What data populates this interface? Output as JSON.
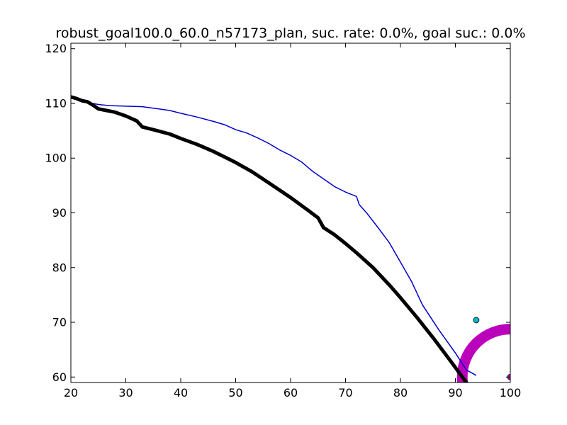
{
  "chart_data": {
    "type": "line",
    "title": "robust_goal100.0_60.0_n57173_plan, suc. rate: 0.0%, goal suc.: 0.0%",
    "xlabel": "",
    "ylabel": "",
    "xlim": [
      20,
      100
    ],
    "ylim": [
      59,
      121
    ],
    "grid": false,
    "xticks": [
      "20",
      "30",
      "40",
      "50",
      "60",
      "70",
      "80",
      "90",
      "100"
    ],
    "yticks": [
      "60",
      "70",
      "80",
      "90",
      "100",
      "110",
      "120"
    ],
    "series": [
      {
        "color": "#0000cc",
        "style": "thin",
        "points": [
          [
            24,
            110
          ],
          [
            25,
            109.8
          ],
          [
            27,
            109.6
          ],
          [
            30,
            109.5
          ],
          [
            33,
            109.4
          ],
          [
            36,
            109.0
          ],
          [
            38,
            108.7
          ],
          [
            40,
            108.2
          ],
          [
            43,
            107.5
          ],
          [
            46,
            106.7
          ],
          [
            48,
            106.1
          ],
          [
            50,
            105.2
          ],
          [
            52,
            104.6
          ],
          [
            54,
            103.7
          ],
          [
            56,
            102.7
          ],
          [
            58,
            101.5
          ],
          [
            60,
            100.5
          ],
          [
            62,
            99.3
          ],
          [
            64,
            97.6
          ],
          [
            66,
            96.2
          ],
          [
            68,
            94.8
          ],
          [
            70,
            93.8
          ],
          [
            72,
            93.0
          ],
          [
            72.5,
            91.5
          ],
          [
            74,
            89.8
          ],
          [
            76,
            87.2
          ],
          [
            78,
            84.5
          ],
          [
            80,
            81.0
          ],
          [
            82,
            77.5
          ],
          [
            84,
            73.2
          ],
          [
            87,
            68.6
          ],
          [
            90,
            64.4
          ],
          [
            92,
            61.3
          ],
          [
            93.8,
            60.3
          ]
        ]
      },
      {
        "color": "#000000",
        "style": "thick",
        "points": [
          [
            20,
            111.2
          ],
          [
            21,
            110.9
          ],
          [
            22,
            110.5
          ],
          [
            23,
            110.3
          ],
          [
            24,
            109.7
          ],
          [
            25,
            109.0
          ],
          [
            26,
            108.8
          ],
          [
            28,
            108.4
          ],
          [
            30,
            107.7
          ],
          [
            32,
            106.8
          ],
          [
            33,
            105.7
          ],
          [
            35,
            105.2
          ],
          [
            38,
            104.4
          ],
          [
            40,
            103.6
          ],
          [
            43,
            102.5
          ],
          [
            46,
            101.2
          ],
          [
            50,
            99.2
          ],
          [
            53,
            97.5
          ],
          [
            56,
            95.5
          ],
          [
            60,
            92.8
          ],
          [
            63,
            90.6
          ],
          [
            65,
            89.1
          ],
          [
            66,
            87.3
          ],
          [
            68,
            86.0
          ],
          [
            70,
            84.4
          ],
          [
            72,
            82.7
          ],
          [
            75,
            80.0
          ],
          [
            78,
            76.8
          ],
          [
            80,
            74.5
          ],
          [
            83,
            70.9
          ],
          [
            86,
            67.1
          ],
          [
            89,
            63.1
          ],
          [
            92,
            59.0
          ],
          [
            95,
            55.6
          ]
        ]
      }
    ],
    "markers": [
      {
        "x": 93.8,
        "y": 70.4,
        "color": "#00b8c8"
      },
      {
        "x": 100,
        "y": 60,
        "color": "#c000c0"
      }
    ],
    "goal_region": {
      "center": [
        100,
        60
      ],
      "radius": 8.75,
      "color": "#bb00bb"
    }
  }
}
